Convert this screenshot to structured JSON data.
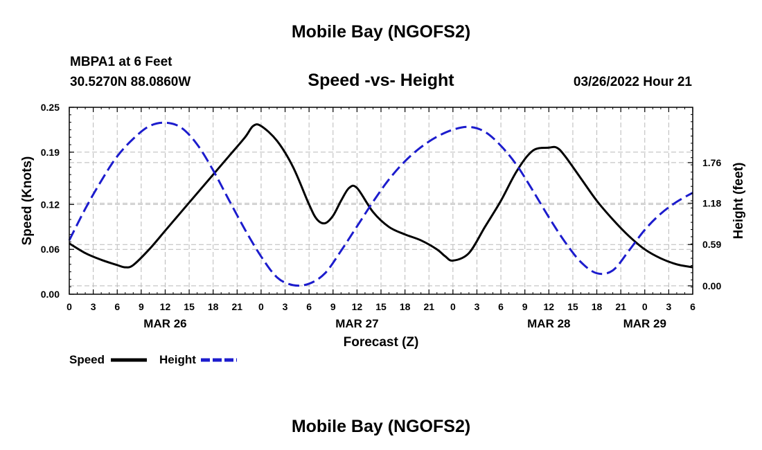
{
  "chart_data": {
    "type": "line",
    "title": "Mobile Bay (NGOFS2)",
    "footer_title": "Mobile Bay (NGOFS2)",
    "station": "MBPA1 at 6 Feet",
    "location": "30.5270N  88.0860W",
    "subtitle": "Speed -vs- Height",
    "timestamp": "03/26/2022 Hour 21",
    "xlabel": "Forecast (Z)",
    "ylabel_left": "Speed (Knots)",
    "ylabel_right": "Height (feet)",
    "x_range_hours": [
      0,
      78
    ],
    "x_tick_labels": [
      "0",
      "3",
      "6",
      "9",
      "12",
      "15",
      "18",
      "21",
      "0",
      "3",
      "6",
      "9",
      "12",
      "15",
      "18",
      "21",
      "0",
      "3",
      "6",
      "9",
      "12",
      "15",
      "18",
      "21",
      "0",
      "3",
      "6"
    ],
    "day_labels": [
      {
        "label": "MAR 26",
        "hour": 12
      },
      {
        "label": "MAR 27",
        "hour": 36
      },
      {
        "label": "MAR 28",
        "hour": 60
      },
      {
        "label": "MAR 29",
        "hour": 72
      }
    ],
    "y_left_range": [
      0,
      0.25
    ],
    "y_left_ticks": [
      "0.00",
      "0.06",
      "0.12",
      "0.19",
      "0.25"
    ],
    "y_right_range": [
      -0.12,
      2.55
    ],
    "y_right_ticks": [
      "0.00",
      "0.59",
      "1.18",
      "1.76"
    ],
    "grid": true,
    "legend_position": "bottom-left",
    "series": [
      {
        "name": "Speed",
        "axis": "left",
        "color": "#000000",
        "style": "solid",
        "x": [
          0,
          2,
          4,
          6,
          7,
          8,
          10,
          12,
          14,
          16,
          18,
          20,
          22,
          23,
          24,
          26,
          28,
          30,
          31,
          32,
          33,
          34,
          35,
          36,
          38,
          40,
          42,
          44,
          46,
          47,
          48,
          50,
          52,
          54,
          56,
          58,
          60,
          61,
          62,
          64,
          66,
          68,
          70,
          72,
          74,
          76,
          78
        ],
        "y": [
          0.068,
          0.055,
          0.046,
          0.039,
          0.036,
          0.039,
          0.06,
          0.085,
          0.11,
          0.135,
          0.16,
          0.185,
          0.21,
          0.225,
          0.225,
          0.205,
          0.17,
          0.12,
          0.1,
          0.095,
          0.105,
          0.125,
          0.142,
          0.142,
          0.11,
          0.09,
          0.08,
          0.072,
          0.06,
          0.051,
          0.045,
          0.055,
          0.09,
          0.125,
          0.165,
          0.192,
          0.196,
          0.196,
          0.185,
          0.155,
          0.125,
          0.1,
          0.078,
          0.06,
          0.048,
          0.04,
          0.036
        ]
      },
      {
        "name": "Height",
        "axis": "right",
        "color": "#1c1ccd",
        "style": "dashed",
        "x": [
          0,
          2,
          4,
          6,
          8,
          10,
          12,
          14,
          16,
          18,
          20,
          22,
          24,
          26,
          28,
          30,
          32,
          34,
          36,
          38,
          40,
          42,
          44,
          46,
          48,
          50,
          52,
          54,
          56,
          58,
          60,
          62,
          64,
          66,
          68,
          70,
          72,
          74,
          76,
          78
        ],
        "y": [
          0.65,
          1.1,
          1.5,
          1.85,
          2.1,
          2.28,
          2.33,
          2.26,
          2.02,
          1.65,
          1.22,
          0.8,
          0.42,
          0.12,
          0.01,
          0.03,
          0.18,
          0.5,
          0.85,
          1.2,
          1.52,
          1.78,
          1.98,
          2.13,
          2.23,
          2.27,
          2.2,
          2.0,
          1.72,
          1.36,
          0.98,
          0.63,
          0.34,
          0.18,
          0.22,
          0.5,
          0.8,
          1.03,
          1.2,
          1.33
        ]
      }
    ]
  }
}
